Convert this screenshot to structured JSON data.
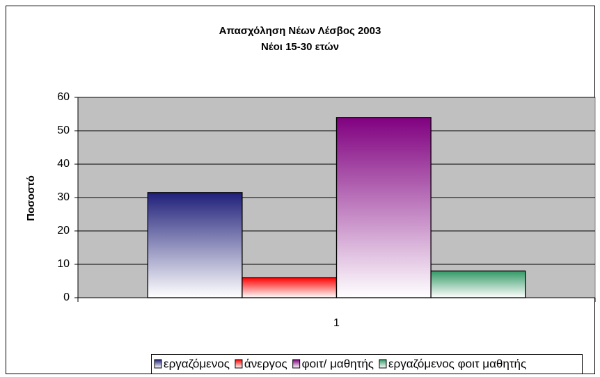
{
  "chart_data": {
    "type": "bar",
    "title": "Απασχόληση Νέων Λέσβος 2003",
    "subtitle": "Νέοι 15-30 ετών",
    "ylabel": "Ποσοστό",
    "categories": [
      "1"
    ],
    "series": [
      {
        "name": "εργαζόμενος",
        "color": "#1f1f7a",
        "values": [
          31.5
        ]
      },
      {
        "name": "άνεργος",
        "color": "#ff0000",
        "values": [
          6
        ]
      },
      {
        "name": "φοιτ/ μαθητής",
        "color": "#800080",
        "values": [
          54
        ]
      },
      {
        "name": "εργαζόμενος φοιτ  μαθητής",
        "color": "#339966",
        "values": [
          8
        ]
      }
    ],
    "ylim": [
      0,
      60
    ],
    "yticks": [
      0,
      10,
      20,
      30,
      40,
      50,
      60
    ],
    "grid": true,
    "legend": "bottom"
  }
}
